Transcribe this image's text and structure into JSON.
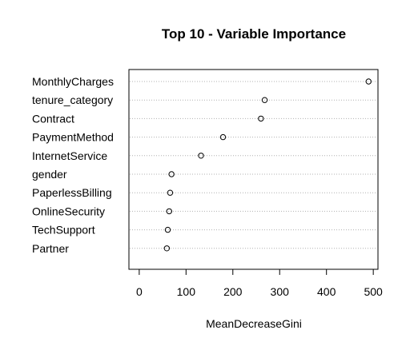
{
  "chart_data": {
    "type": "scatter",
    "title": "Top 10 - Variable Importance",
    "xlabel": "MeanDecreaseGini",
    "ylabel": "",
    "xlim": [
      -22,
      510
    ],
    "x_ticks": [
      0,
      100,
      200,
      300,
      400,
      500
    ],
    "grid": "dotted horizontal lines per variable",
    "variables": [
      {
        "name": "MonthlyCharges",
        "value": 490
      },
      {
        "name": "tenure_category",
        "value": 268
      },
      {
        "name": "Contract",
        "value": 260
      },
      {
        "name": "PaymentMethod",
        "value": 179
      },
      {
        "name": "InternetService",
        "value": 132
      },
      {
        "name": "gender",
        "value": 69
      },
      {
        "name": "PaperlessBilling",
        "value": 66
      },
      {
        "name": "OnlineSecurity",
        "value": 64
      },
      {
        "name": "TechSupport",
        "value": 61
      },
      {
        "name": "Partner",
        "value": 59
      }
    ]
  }
}
